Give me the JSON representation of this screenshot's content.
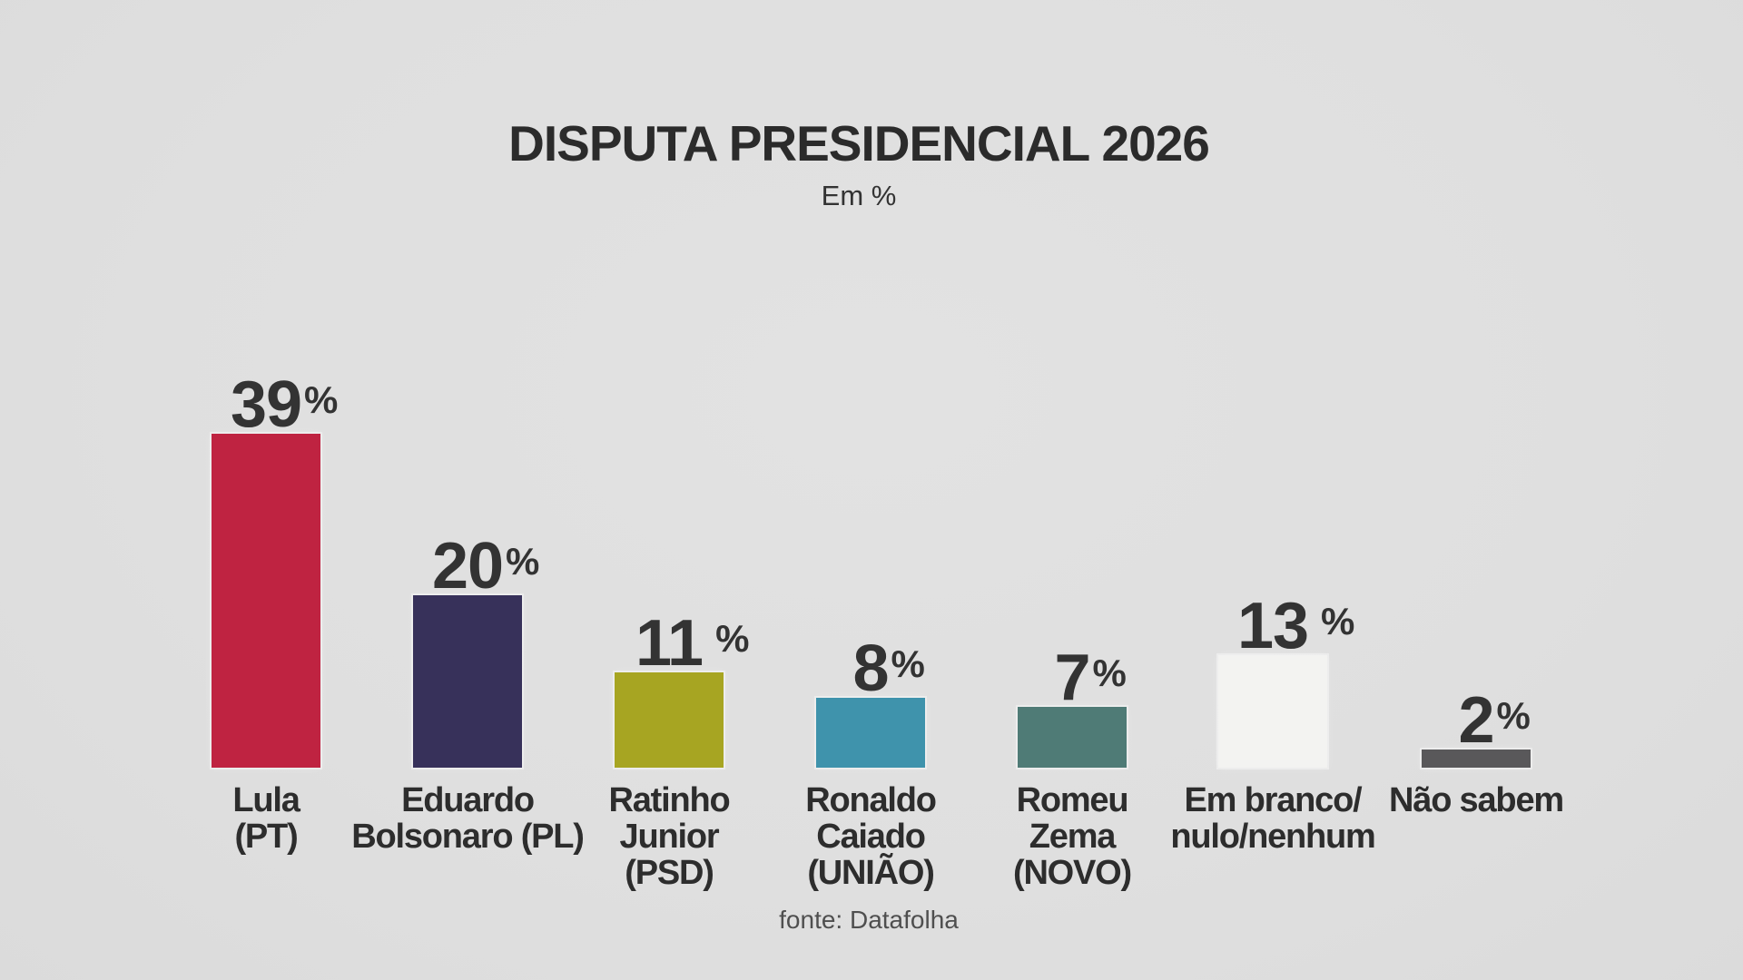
{
  "page": {
    "background_color": "#e0e0e0",
    "text_color": "#2e2e2e"
  },
  "chart_data": {
    "type": "bar",
    "title": "DISPUTA PRESIDENCIAL 2026",
    "subtitle": "Em %",
    "source": "fonte: Datafolha",
    "unit": "%",
    "ylim": [
      0,
      40
    ],
    "grid": false,
    "legend": "none",
    "value_labels": "above-bars",
    "categories": [
      "Lula (PT)",
      "Eduardo Bolsonaro (PL)",
      "Ratinho Junior (PSD)",
      "Ronaldo Caiado (UNIÃO)",
      "Romeu Zema (NOVO)",
      "Em branco/nulo/nenhum",
      "Não sabem"
    ],
    "values": [
      39,
      20,
      11,
      8,
      7,
      13,
      2
    ],
    "bars": [
      {
        "value": 39,
        "value_text": "39%",
        "label_lines": [
          "Lula",
          "(PT)"
        ],
        "color": "#bf2341",
        "value_gap": false
      },
      {
        "value": 20,
        "value_text": "20%",
        "label_lines": [
          "Eduardo",
          "Bolsonaro (PL)"
        ],
        "color": "#37315a",
        "value_gap": false
      },
      {
        "value": 11,
        "value_text": "11 %",
        "label_lines": [
          "Ratinho",
          "Junior",
          "(PSD)"
        ],
        "color": "#a7a522",
        "value_gap": true
      },
      {
        "value": 8,
        "value_text": "8%",
        "label_lines": [
          "Ronaldo",
          "Caiado",
          "(UNIÃO)"
        ],
        "color": "#3f93ac",
        "value_gap": false
      },
      {
        "value": 7,
        "value_text": "7%",
        "label_lines": [
          "Romeu",
          "Zema",
          "(NOVO)"
        ],
        "color": "#4f7b76",
        "value_gap": false
      },
      {
        "value": 13,
        "value_text": "13 %",
        "label_lines": [
          "Em branco/",
          "nulo/nenhum"
        ],
        "color": "#f3f3f1",
        "value_gap": true
      },
      {
        "value": 2,
        "value_text": "2%",
        "label_lines": [
          "Não sabem"
        ],
        "color": "#59585a",
        "value_gap": false
      }
    ]
  }
}
